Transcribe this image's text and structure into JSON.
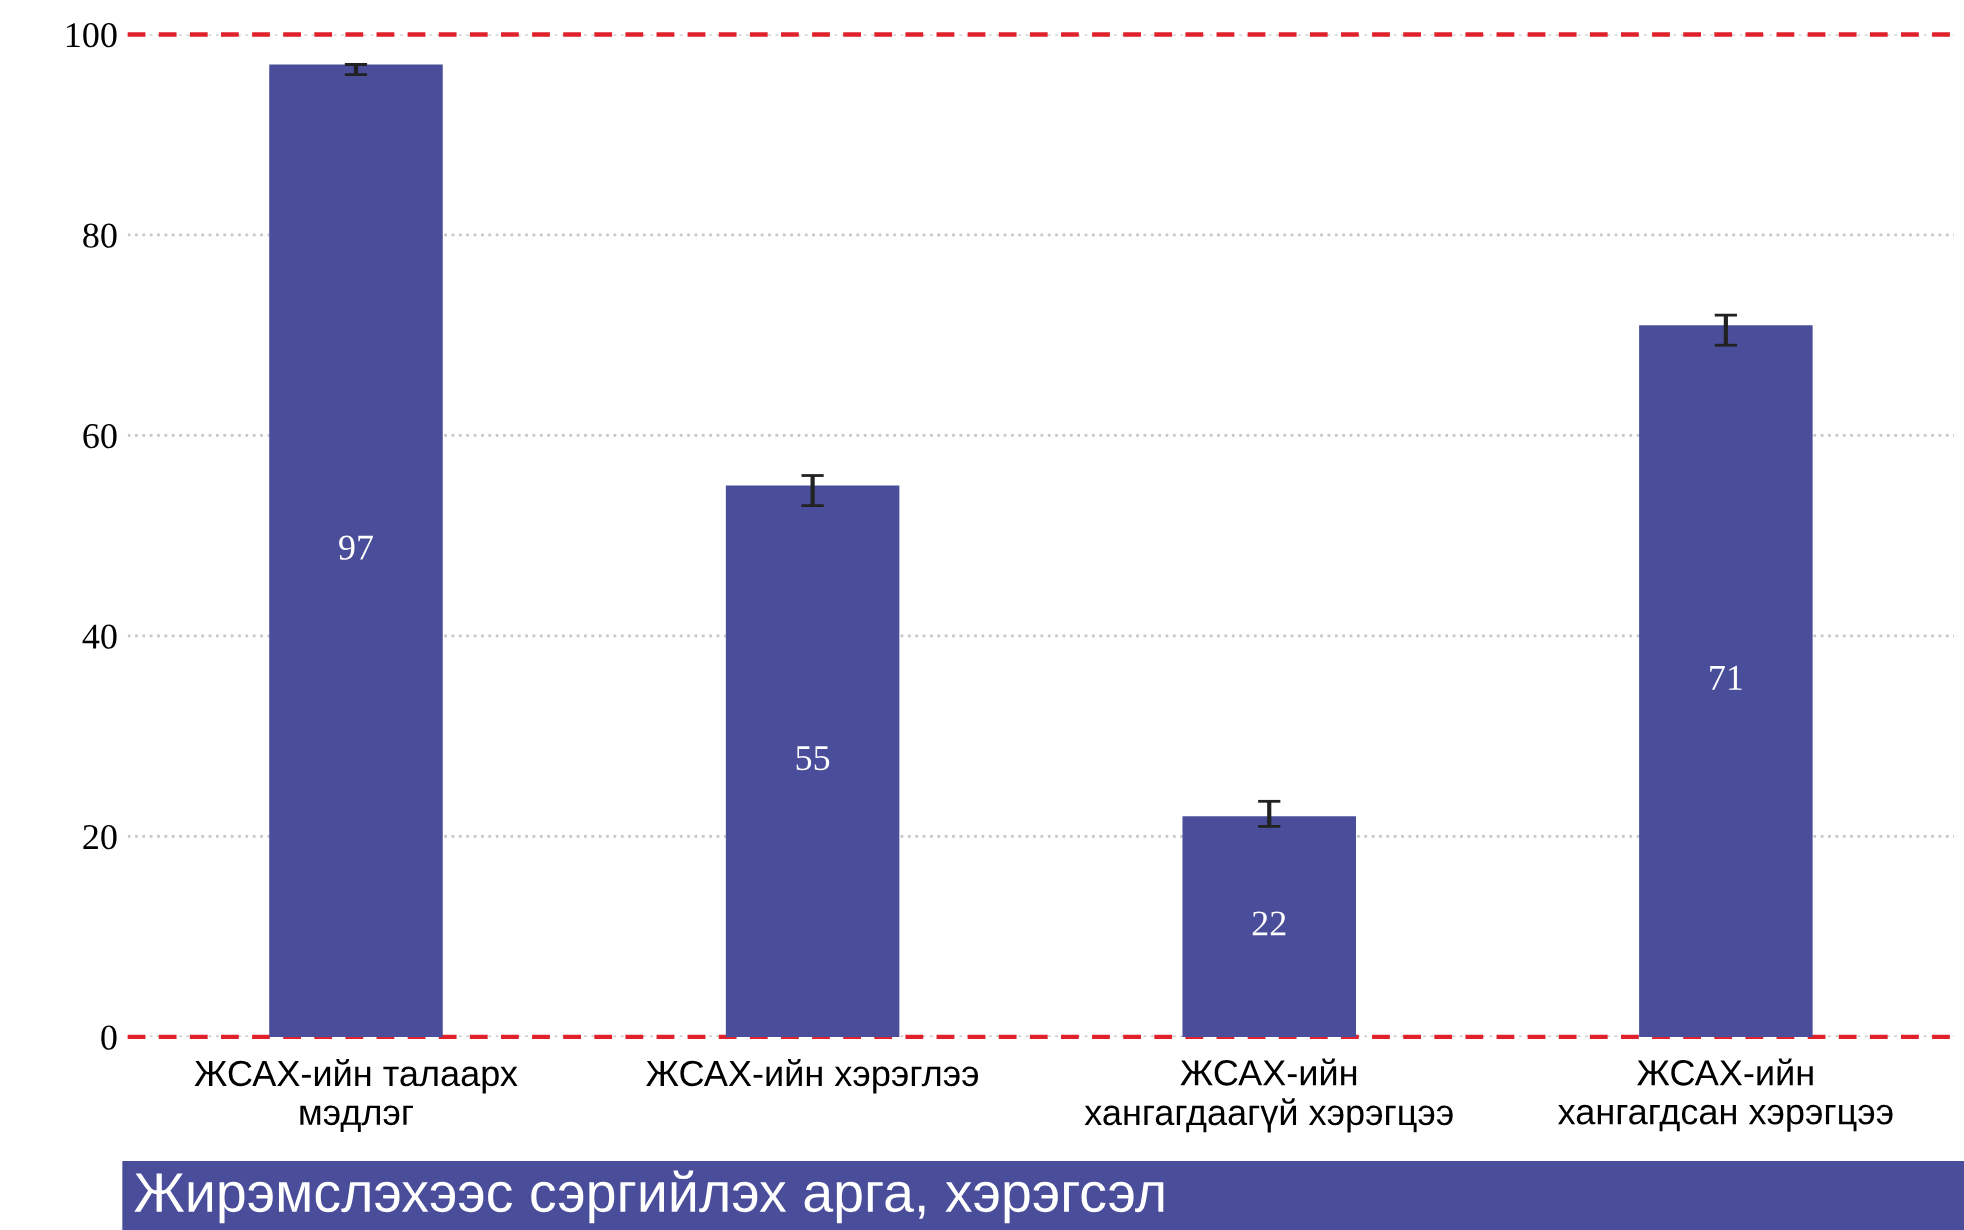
{
  "chart_data": {
    "type": "bar",
    "title": "Жирэмслэхээс сэргийлэх арга, хэрэгсэл",
    "categories": [
      "ЖСАХ-ийн талаарх\nмэдлэг",
      "ЖСАХ-ийн хэрэглээ",
      "ЖСАХ-ийн\nхангагдаагүй хэрэгцээ",
      "ЖСАХ-ийн\nхангагдсан хэрэгцээ"
    ],
    "values": [
      97,
      55,
      22,
      71
    ],
    "errors": [
      [
        96,
        97
      ],
      [
        53,
        56
      ],
      [
        21,
        23.5
      ],
      [
        69,
        72
      ]
    ],
    "color": "#4a4e9a",
    "data_labels": true,
    "ylim": [
      0,
      100
    ],
    "yticks": [
      0,
      20,
      40,
      60,
      80,
      100
    ],
    "grid": "y",
    "ref_lines": [
      {
        "axis": "y",
        "value": 0,
        "color": "#e0202a",
        "line_style": "dashed"
      },
      {
        "axis": "y",
        "value": 100,
        "color": "#e0202a",
        "line_style": "dashed"
      }
    ]
  }
}
